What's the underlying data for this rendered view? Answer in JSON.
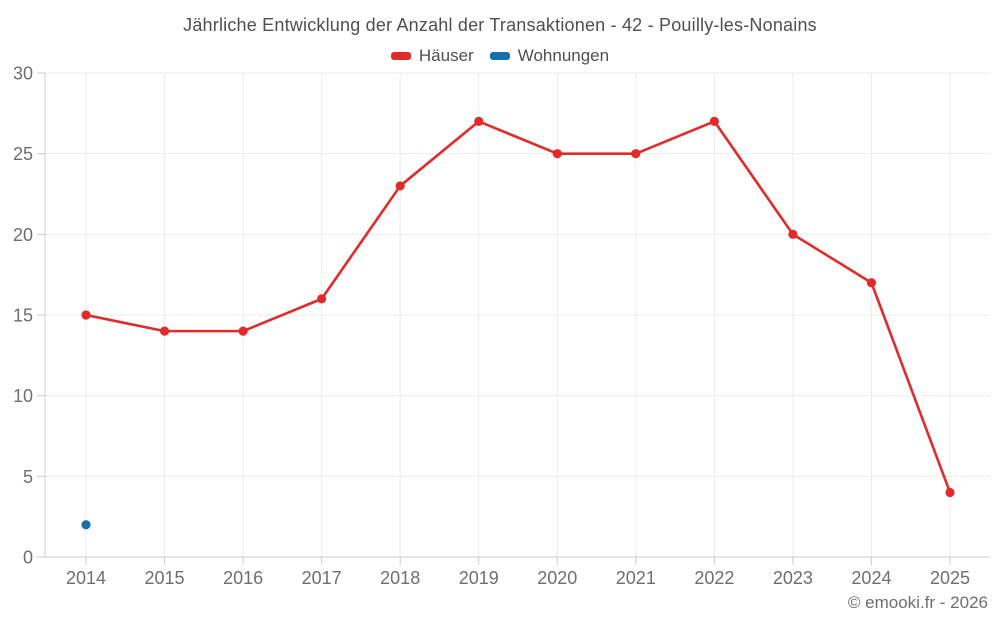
{
  "chart": {
    "title": "Jährliche Entwicklung der Anzahl der Transaktionen - 42 - Pouilly-les-Nonains",
    "copyright": "© emooki.fr - 2026"
  },
  "chart_data": {
    "type": "line",
    "title": "Jährliche Entwicklung der Anzahl der Transaktionen - 42 - Pouilly-les-Nonains",
    "x": [
      2014,
      2015,
      2016,
      2017,
      2018,
      2019,
      2020,
      2021,
      2022,
      2023,
      2024,
      2025
    ],
    "series": [
      {
        "name": "Häuser",
        "color": "#e12b2a",
        "values": [
          15,
          14,
          14,
          16,
          23,
          27,
          25,
          25,
          27,
          20,
          17,
          4
        ]
      },
      {
        "name": "Wohnungen",
        "color": "#1671ab",
        "values": [
          2,
          null,
          null,
          null,
          null,
          null,
          null,
          null,
          null,
          null,
          null,
          null
        ]
      }
    ],
    "xlabel": "",
    "ylabel": "",
    "ylim": [
      0,
      30
    ],
    "y_ticks": [
      0,
      5,
      10,
      15,
      20,
      25,
      30
    ],
    "grid": true,
    "legend_position": "top",
    "grid_color": "#ebebeb",
    "axis_color": "#cccccc",
    "tick_label_color": "#6e6e6e"
  }
}
